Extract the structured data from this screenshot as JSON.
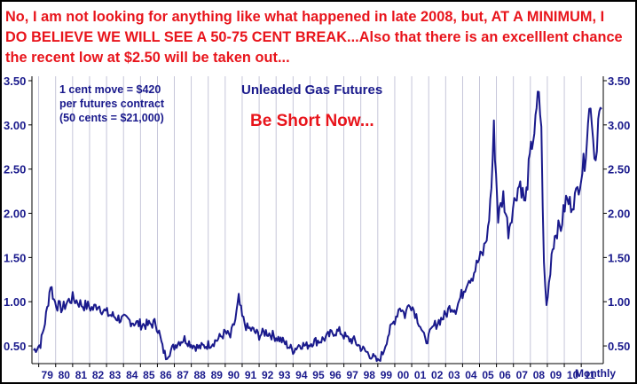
{
  "headline": "No, I am not looking for anything like what happened in late 2008, but, AT A MINIMUM, I DO BELIEVE WE WILL SEE A 50-75 CENT BREAK...Also that there is an excelllent chance the recent low at $2.50 will be taken out...",
  "notes": [
    "1 cent move = $420",
    "per futures contract",
    "(50 cents = $21,000)"
  ],
  "call_to_action": "Be Short Now...",
  "colors": {
    "headline": "#e8141b",
    "axis_text": "#1a1a8c",
    "series": "#1a1a8c",
    "grid": "#b8b8d0",
    "border": "#000000"
  },
  "chart_data": {
    "type": "line",
    "title": "Unleaded Gas Futures",
    "xlabel": "Monthly",
    "ylabel": "",
    "x_tick_labels": [
      "79",
      "80",
      "81",
      "82",
      "83",
      "84",
      "85",
      "86",
      "87",
      "88",
      "89",
      "90",
      "91",
      "92",
      "93",
      "94",
      "95",
      "96",
      "97",
      "98",
      "99",
      "00",
      "01",
      "02",
      "03",
      "04",
      "05",
      "06",
      "07",
      "08",
      "09",
      "10",
      "11"
    ],
    "y_ticks": [
      "0.50",
      "1.00",
      "1.50",
      "2.00",
      "2.50",
      "3.00",
      "3.50"
    ],
    "y_tick_values": [
      0.5,
      1.0,
      1.5,
      2.0,
      2.5,
      3.0,
      3.5
    ],
    "ylim": [
      0.3,
      3.55
    ],
    "xlim": [
      1978.6,
      2012.3
    ],
    "y_axis_both_sides": true,
    "grid": {
      "x": true,
      "y": false
    },
    "series": [
      {
        "x": [
          1978.7,
          1978.9,
          1979.1,
          1979.3,
          1979.5,
          1979.7,
          1979.9,
          1980.1,
          1980.4,
          1980.7,
          1981.0,
          1981.3,
          1981.6,
          1981.9,
          1982.2,
          1982.5,
          1982.8,
          1983.1,
          1983.5,
          1983.9,
          1984.3,
          1984.7,
          1985.1,
          1985.5,
          1985.9,
          1986.1,
          1986.3,
          1986.5,
          1986.8,
          1987.2,
          1987.6,
          1988.0,
          1988.4,
          1988.8,
          1989.2,
          1989.6,
          1990.0,
          1990.3,
          1990.6,
          1990.8,
          1991.0,
          1991.3,
          1991.6,
          1992.0,
          1992.4,
          1992.8,
          1993.2,
          1993.6,
          1994.0,
          1994.4,
          1994.8,
          1995.2,
          1995.6,
          1996.0,
          1996.4,
          1996.8,
          1997.2,
          1997.6,
          1998.0,
          1998.4,
          1998.8,
          1999.0,
          1999.3,
          1999.6,
          2000.0,
          2000.3,
          2000.6,
          2000.9,
          2001.2,
          2001.5,
          2001.8,
          2002.0,
          2002.3,
          2002.6,
          2003.0,
          2003.3,
          2003.6,
          2004.0,
          2004.3,
          2004.6,
          2004.9,
          2005.2,
          2005.5,
          2005.7,
          2005.85,
          2006.1,
          2006.4,
          2006.7,
          2006.9,
          2007.2,
          2007.4,
          2007.7,
          2007.9,
          2008.1,
          2008.3,
          2008.5,
          2008.65,
          2008.8,
          2008.95,
          2009.1,
          2009.25,
          2009.5,
          2009.8,
          2010.1,
          2010.4,
          2010.7,
          2011.0,
          2011.2,
          2011.4,
          2011.55,
          2011.7,
          2011.85,
          2012.0,
          2012.2
        ],
        "y": [
          0.45,
          0.48,
          0.52,
          0.7,
          0.92,
          1.2,
          1.02,
          0.96,
          0.92,
          1.0,
          1.04,
          1.0,
          0.96,
          0.95,
          0.92,
          0.97,
          0.9,
          0.86,
          0.83,
          0.8,
          0.79,
          0.76,
          0.74,
          0.74,
          0.76,
          0.65,
          0.48,
          0.38,
          0.45,
          0.54,
          0.58,
          0.52,
          0.48,
          0.5,
          0.53,
          0.58,
          0.65,
          0.6,
          0.8,
          1.03,
          0.82,
          0.7,
          0.68,
          0.62,
          0.66,
          0.62,
          0.58,
          0.52,
          0.45,
          0.52,
          0.5,
          0.55,
          0.56,
          0.6,
          0.66,
          0.66,
          0.58,
          0.56,
          0.48,
          0.42,
          0.36,
          0.32,
          0.42,
          0.62,
          0.8,
          0.95,
          0.85,
          1.0,
          0.88,
          0.74,
          0.55,
          0.6,
          0.72,
          0.78,
          0.85,
          0.95,
          0.92,
          1.1,
          1.25,
          1.3,
          1.45,
          1.55,
          1.8,
          2.3,
          2.95,
          1.95,
          2.2,
          1.8,
          2.0,
          2.25,
          2.35,
          2.1,
          2.5,
          2.8,
          3.0,
          3.4,
          2.9,
          1.4,
          0.95,
          1.2,
          1.55,
          1.8,
          1.85,
          2.15,
          2.1,
          2.2,
          2.45,
          2.6,
          3.0,
          3.3,
          2.85,
          2.6,
          3.05,
          3.18
        ]
      }
    ]
  }
}
